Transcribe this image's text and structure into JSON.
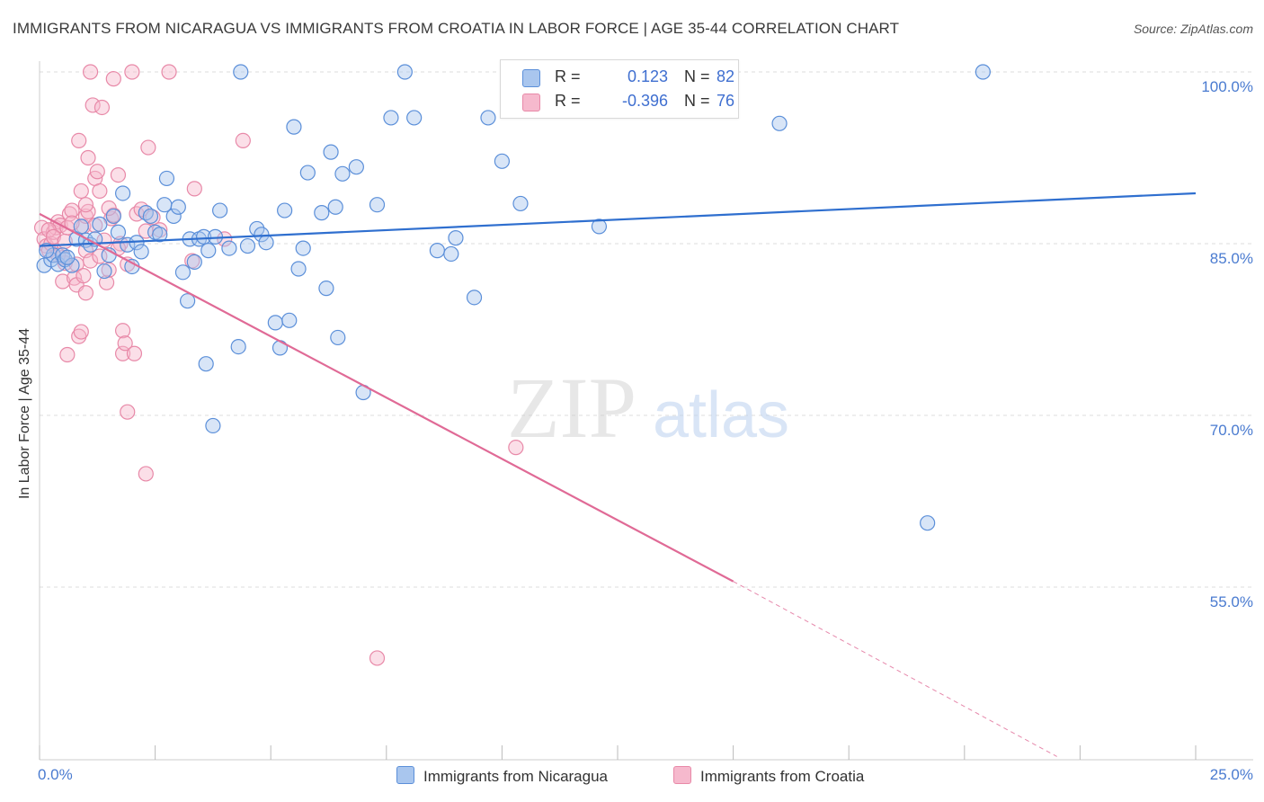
{
  "header": {
    "title": "IMMIGRANTS FROM NICARAGUA VS IMMIGRANTS FROM CROATIA IN LABOR FORCE | AGE 35-44 CORRELATION CHART",
    "source": "Source: ZipAtlas.com"
  },
  "watermark": {
    "zip": "ZIP",
    "atlas": "atlas"
  },
  "colors": {
    "nicaragua_fill": "#a9c6ee",
    "nicaragua_stroke": "#5b8fd9",
    "nicaragua_line": "#2f6fcf",
    "croatia_fill": "#f6b9cd",
    "croatia_stroke": "#e889a8",
    "croatia_line": "#e06a96",
    "tick_text": "#4a7bd0",
    "grid": "#dddddd"
  },
  "stats": {
    "nicaragua": {
      "r_label": "R =",
      "r_value": "0.123",
      "n_label": "N =",
      "n_value": "82"
    },
    "croatia": {
      "r_label": "R =",
      "r_value": "-0.396",
      "n_label": "N =",
      "n_value": "76"
    }
  },
  "chart_data": {
    "type": "scatter",
    "title": "IMMIGRANTS FROM NICARAGUA VS IMMIGRANTS FROM CROATIA IN LABOR FORCE | AGE 35-44 CORRELATION CHART",
    "xlabel": "",
    "ylabel": "In Labor Force | Age 35-44",
    "xlim": [
      0,
      25
    ],
    "ylim": [
      40,
      101
    ],
    "x_tick_labels": {
      "min": "0.0%",
      "max": "25.0%"
    },
    "y_ticks": [
      {
        "value": 100,
        "label": "100.0%"
      },
      {
        "value": 85,
        "label": "85.0%"
      },
      {
        "value": 70,
        "label": "70.0%"
      },
      {
        "value": 55,
        "label": "55.0%"
      }
    ],
    "grid": true,
    "series": [
      {
        "name": "Immigrants from Nicaragua",
        "trend": {
          "x0": 0,
          "y0": 84.8,
          "x1": 25,
          "y1": 89.4
        },
        "points": [
          [
            0.1,
            83.1
          ],
          [
            0.25,
            83.6
          ],
          [
            0.3,
            84.0
          ],
          [
            0.4,
            83.2
          ],
          [
            0.5,
            84.0
          ],
          [
            0.55,
            83.6
          ],
          [
            0.7,
            83.1
          ],
          [
            0.8,
            85.4
          ],
          [
            0.9,
            86.5
          ],
          [
            1.0,
            85.3
          ],
          [
            1.1,
            84.9
          ],
          [
            1.2,
            85.4
          ],
          [
            1.3,
            86.7
          ],
          [
            1.4,
            82.6
          ],
          [
            1.5,
            84.0
          ],
          [
            1.6,
            87.4
          ],
          [
            1.7,
            86.0
          ],
          [
            1.8,
            89.4
          ],
          [
            1.9,
            84.9
          ],
          [
            2.0,
            83.0
          ],
          [
            2.1,
            85.1
          ],
          [
            2.2,
            84.3
          ],
          [
            2.3,
            87.7
          ],
          [
            2.4,
            87.4
          ],
          [
            2.5,
            86.0
          ],
          [
            2.6,
            85.8
          ],
          [
            2.7,
            88.4
          ],
          [
            2.75,
            90.7
          ],
          [
            2.9,
            87.4
          ],
          [
            3.0,
            88.2
          ],
          [
            3.1,
            82.5
          ],
          [
            3.2,
            80.0
          ],
          [
            3.25,
            85.4
          ],
          [
            3.35,
            83.4
          ],
          [
            3.45,
            85.4
          ],
          [
            3.55,
            85.6
          ],
          [
            3.6,
            74.5
          ],
          [
            3.65,
            84.4
          ],
          [
            3.75,
            69.1
          ],
          [
            3.8,
            85.6
          ],
          [
            3.9,
            87.9
          ],
          [
            4.1,
            84.6
          ],
          [
            4.3,
            76.0
          ],
          [
            4.35,
            100.0
          ],
          [
            4.5,
            84.8
          ],
          [
            4.7,
            86.3
          ],
          [
            4.8,
            85.8
          ],
          [
            4.9,
            85.1
          ],
          [
            5.1,
            78.1
          ],
          [
            5.2,
            75.9
          ],
          [
            5.3,
            87.9
          ],
          [
            5.4,
            78.3
          ],
          [
            5.5,
            95.2
          ],
          [
            5.6,
            82.8
          ],
          [
            5.7,
            84.6
          ],
          [
            5.8,
            91.2
          ],
          [
            6.1,
            87.7
          ],
          [
            6.2,
            81.1
          ],
          [
            6.3,
            93.0
          ],
          [
            6.4,
            88.2
          ],
          [
            6.45,
            76.8
          ],
          [
            6.55,
            91.1
          ],
          [
            6.85,
            91.7
          ],
          [
            7.0,
            72.0
          ],
          [
            7.3,
            88.4
          ],
          [
            7.6,
            96.0
          ],
          [
            7.9,
            100.0
          ],
          [
            8.1,
            96.0
          ],
          [
            8.6,
            84.4
          ],
          [
            8.9,
            84.1
          ],
          [
            9.0,
            85.5
          ],
          [
            9.4,
            80.3
          ],
          [
            9.7,
            96.0
          ],
          [
            10.0,
            92.2
          ],
          [
            10.4,
            88.5
          ],
          [
            12.1,
            86.5
          ],
          [
            14.0,
            97.6
          ],
          [
            16.0,
            95.5
          ],
          [
            19.2,
            60.6
          ],
          [
            20.4,
            100.0
          ],
          [
            0.15,
            84.4
          ],
          [
            0.6,
            83.8
          ]
        ]
      },
      {
        "name": "Immigrants from Croatia",
        "trend": {
          "x0": 0,
          "y0": 87.6,
          "x1": 15,
          "y1": 55.5,
          "dashed_to": {
            "x": 22,
            "y": 40.2
          }
        },
        "points": [
          [
            0.05,
            86.4
          ],
          [
            0.1,
            85.4
          ],
          [
            0.15,
            84.8
          ],
          [
            0.2,
            84.4
          ],
          [
            0.25,
            85.0
          ],
          [
            0.3,
            86.0
          ],
          [
            0.35,
            86.4
          ],
          [
            0.4,
            86.9
          ],
          [
            0.45,
            86.6
          ],
          [
            0.5,
            83.8
          ],
          [
            0.5,
            81.7
          ],
          [
            0.55,
            83.3
          ],
          [
            0.6,
            86.4
          ],
          [
            0.65,
            87.6
          ],
          [
            0.7,
            87.9
          ],
          [
            0.6,
            75.3
          ],
          [
            0.75,
            82.0
          ],
          [
            0.8,
            81.4
          ],
          [
            0.85,
            94.0
          ],
          [
            0.9,
            89.6
          ],
          [
            0.85,
            76.9
          ],
          [
            0.9,
            77.3
          ],
          [
            0.95,
            86.5
          ],
          [
            1.0,
            87.4
          ],
          [
            1.05,
            87.8
          ],
          [
            1.0,
            88.4
          ],
          [
            1.05,
            92.5
          ],
          [
            1.0,
            84.4
          ],
          [
            1.1,
            83.5
          ],
          [
            1.0,
            80.7
          ],
          [
            1.1,
            100.0
          ],
          [
            1.15,
            97.1
          ],
          [
            1.2,
            90.7
          ],
          [
            1.25,
            91.3
          ],
          [
            1.3,
            89.6
          ],
          [
            1.35,
            96.9
          ],
          [
            1.4,
            85.3
          ],
          [
            1.45,
            81.6
          ],
          [
            1.5,
            82.7
          ],
          [
            1.55,
            87.2
          ],
          [
            1.6,
            99.4
          ],
          [
            1.6,
            87.5
          ],
          [
            1.7,
            91.0
          ],
          [
            1.75,
            85.0
          ],
          [
            1.8,
            77.4
          ],
          [
            1.8,
            75.4
          ],
          [
            1.85,
            76.3
          ],
          [
            1.9,
            83.2
          ],
          [
            1.9,
            70.3
          ],
          [
            2.0,
            100.0
          ],
          [
            2.05,
            75.4
          ],
          [
            2.1,
            87.6
          ],
          [
            2.2,
            88.0
          ],
          [
            2.3,
            86.1
          ],
          [
            2.3,
            64.9
          ],
          [
            2.35,
            93.4
          ],
          [
            2.45,
            87.3
          ],
          [
            2.6,
            86.2
          ],
          [
            2.8,
            100.0
          ],
          [
            3.3,
            83.5
          ],
          [
            3.35,
            89.8
          ],
          [
            4.0,
            85.4
          ],
          [
            4.4,
            94.0
          ],
          [
            7.3,
            48.8
          ],
          [
            10.3,
            67.2
          ],
          [
            0.2,
            86.2
          ],
          [
            0.3,
            85.6
          ],
          [
            0.4,
            84.0
          ],
          [
            0.55,
            85.2
          ],
          [
            0.7,
            86.8
          ],
          [
            0.8,
            83.2
          ],
          [
            0.95,
            82.2
          ],
          [
            1.2,
            86.6
          ],
          [
            1.3,
            83.9
          ],
          [
            1.5,
            88.1
          ],
          [
            1.7,
            84.6
          ]
        ]
      }
    ]
  },
  "legend": {
    "nicaragua": "Immigrants from Nicaragua",
    "croatia": "Immigrants from Croatia"
  }
}
